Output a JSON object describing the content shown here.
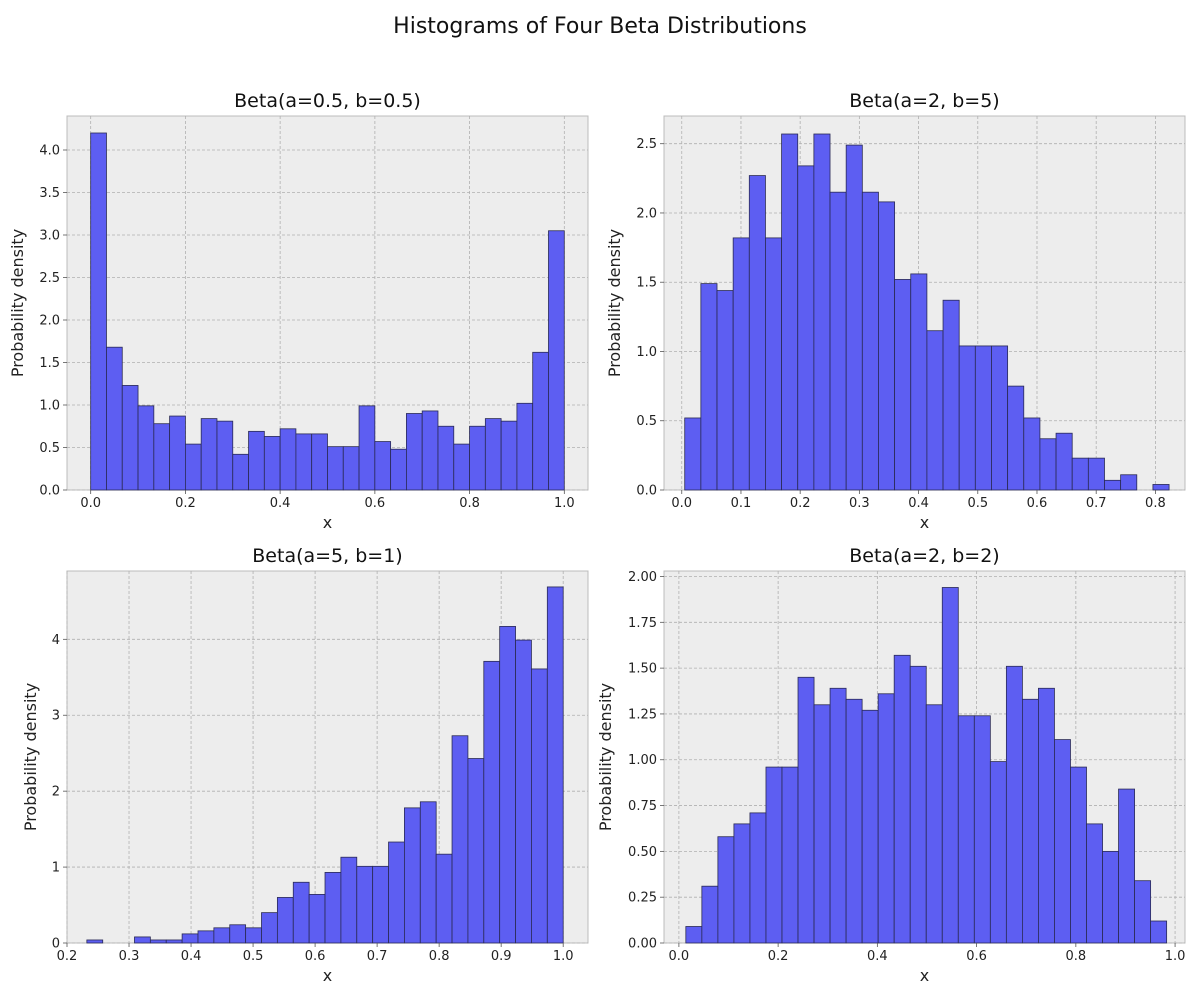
{
  "figure": {
    "title": "Histograms of Four Beta Distributions"
  },
  "chart_data": [
    {
      "type": "bar",
      "title": "Beta(a=0.5, b=0.5)",
      "xlabel": "x",
      "ylabel": "Probability density",
      "xlim": [
        -0.05,
        1.05
      ],
      "ylim": [
        0,
        4.4
      ],
      "xticks": [
        0.0,
        0.2,
        0.4,
        0.6,
        0.8,
        1.0
      ],
      "xtick_labels": [
        "0.0",
        "0.2",
        "0.4",
        "0.6",
        "0.8",
        "1.0"
      ],
      "yticks": [
        0.0,
        0.5,
        1.0,
        1.5,
        2.0,
        2.5,
        3.0,
        3.5,
        4.0
      ],
      "ytick_labels": [
        "0.0",
        "0.5",
        "1.0",
        "1.5",
        "2.0",
        "2.5",
        "3.0",
        "3.5",
        "4.0"
      ],
      "bin_start": 0.0,
      "bin_width": 0.03333,
      "values": [
        4.2,
        1.68,
        1.23,
        0.99,
        0.78,
        0.87,
        0.54,
        0.84,
        0.81,
        0.42,
        0.69,
        0.63,
        0.72,
        0.66,
        0.66,
        0.51,
        0.51,
        0.99,
        0.57,
        0.48,
        0.9,
        0.93,
        0.75,
        0.54,
        0.75,
        0.84,
        0.81,
        1.02,
        1.62,
        3.05
      ],
      "grid": true
    },
    {
      "type": "bar",
      "title": "Beta(a=2, b=5)",
      "xlabel": "x",
      "ylabel": "Probability density",
      "xlim": [
        -0.03,
        0.85
      ],
      "ylim": [
        0,
        2.7
      ],
      "xticks": [
        0.0,
        0.1,
        0.2,
        0.3,
        0.4,
        0.5,
        0.6,
        0.7,
        0.8
      ],
      "xtick_labels": [
        "0.0",
        "0.1",
        "0.2",
        "0.3",
        "0.4",
        "0.5",
        "0.6",
        "0.7",
        "0.8"
      ],
      "yticks": [
        0.0,
        0.5,
        1.0,
        1.5,
        2.0,
        2.5
      ],
      "ytick_labels": [
        "0.0",
        "0.5",
        "1.0",
        "1.5",
        "2.0",
        "2.5"
      ],
      "bin_start": 0.005,
      "bin_width": 0.02727,
      "values": [
        0.52,
        1.49,
        1.44,
        1.82,
        2.27,
        1.82,
        2.57,
        2.34,
        2.57,
        2.15,
        2.49,
        2.15,
        2.08,
        1.52,
        1.56,
        1.15,
        1.37,
        1.04,
        1.04,
        1.04,
        0.75,
        0.52,
        0.37,
        0.41,
        0.23,
        0.23,
        0.07,
        0.11,
        0.0,
        0.04
      ],
      "grid": true
    },
    {
      "type": "bar",
      "title": "Beta(a=5, b=1)",
      "xlabel": "x",
      "ylabel": "Probability density",
      "xlim": [
        0.2,
        1.04
      ],
      "ylim": [
        0,
        4.9
      ],
      "xticks": [
        0.2,
        0.3,
        0.4,
        0.5,
        0.6,
        0.7,
        0.8,
        0.9,
        1.0
      ],
      "xtick_labels": [
        "0.2",
        "0.3",
        "0.4",
        "0.5",
        "0.6",
        "0.7",
        "0.8",
        "0.9",
        "1.0"
      ],
      "yticks": [
        0,
        1,
        2,
        3,
        4
      ],
      "ytick_labels": [
        "0",
        "1",
        "2",
        "3",
        "4"
      ],
      "bin_start": 0.232,
      "bin_width": 0.0256,
      "values": [
        0.04,
        0.0,
        0.0,
        0.08,
        0.04,
        0.04,
        0.12,
        0.16,
        0.2,
        0.24,
        0.2,
        0.4,
        0.6,
        0.8,
        0.64,
        0.93,
        1.13,
        1.01,
        1.01,
        1.33,
        1.78,
        1.86,
        1.17,
        2.73,
        2.43,
        3.71,
        4.17,
        3.99,
        3.61,
        4.69
      ],
      "grid": true
    },
    {
      "type": "bar",
      "title": "Beta(a=2, b=2)",
      "xlabel": "x",
      "ylabel": "Probability density",
      "xlim": [
        -0.03,
        1.02
      ],
      "ylim": [
        0,
        2.03
      ],
      "xticks": [
        0.0,
        0.2,
        0.4,
        0.6,
        0.8,
        1.0
      ],
      "xtick_labels": [
        "0.0",
        "0.2",
        "0.4",
        "0.6",
        "0.8",
        "1.0"
      ],
      "yticks": [
        0.0,
        0.25,
        0.5,
        0.75,
        1.0,
        1.25,
        1.5,
        1.75,
        2.0
      ],
      "ytick_labels": [
        "0.00",
        "0.25",
        "0.50",
        "0.75",
        "1.00",
        "1.25",
        "1.50",
        "1.75",
        "2.00"
      ],
      "bin_start": 0.014,
      "bin_width": 0.0323,
      "values": [
        0.09,
        0.31,
        0.58,
        0.65,
        0.71,
        0.96,
        0.96,
        1.45,
        1.3,
        1.39,
        1.33,
        1.27,
        1.36,
        1.57,
        1.51,
        1.3,
        1.94,
        1.24,
        1.24,
        0.99,
        1.51,
        1.33,
        1.39,
        1.11,
        0.96,
        0.65,
        0.5,
        0.84,
        0.34,
        0.12
      ],
      "grid": true
    }
  ]
}
